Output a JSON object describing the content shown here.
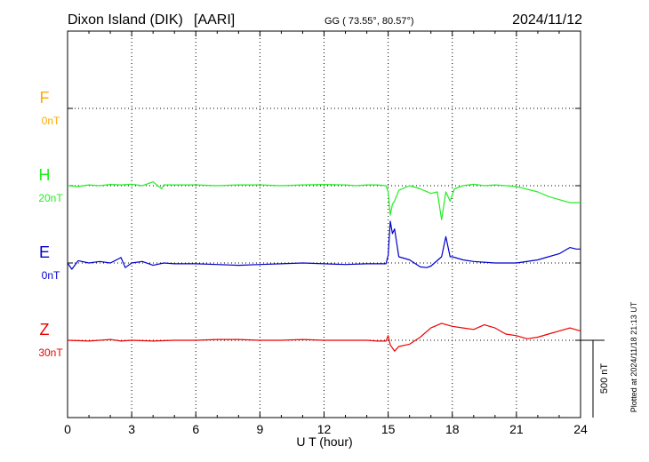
{
  "header": {
    "station": "Dixon Island (DIK)",
    "institute": "[AARI]",
    "coords": "GG ( 73.55°,  80.57°)",
    "date": "2024/11/12"
  },
  "plotted_note": "Plotted at 2024/11/18 21:13 UT",
  "scale_label": "500 nT",
  "chart_data": {
    "type": "line",
    "title": "Dixon Island (DIK)  [AARI]",
    "xlabel": "U T (hour)",
    "ylabel": "",
    "xlim": [
      0,
      24
    ],
    "xticks": [
      "0",
      "3",
      "6",
      "9",
      "12",
      "15",
      "18",
      "21",
      "24"
    ],
    "units_per_scale_bar": 500,
    "grid": true,
    "series": [
      {
        "name": "F",
        "baseline_label": "0nT",
        "color": "#ffaa00",
        "points": []
      },
      {
        "name": "H",
        "baseline_label": "20nT",
        "color": "#22ee22",
        "points": [
          [
            0,
            0
          ],
          [
            0.5,
            -5
          ],
          [
            1,
            5
          ],
          [
            1.5,
            0
          ],
          [
            2,
            8
          ],
          [
            2.5,
            5
          ],
          [
            3,
            10
          ],
          [
            3.5,
            0
          ],
          [
            4,
            25
          ],
          [
            4.4,
            -20
          ],
          [
            4.5,
            5
          ],
          [
            6,
            5
          ],
          [
            7,
            0
          ],
          [
            8,
            5
          ],
          [
            9,
            5
          ],
          [
            10,
            0
          ],
          [
            11,
            5
          ],
          [
            12,
            8
          ],
          [
            13,
            5
          ],
          [
            13.5,
            0
          ],
          [
            14,
            5
          ],
          [
            14.5,
            5
          ],
          [
            14.9,
            0
          ],
          [
            15,
            -40
          ],
          [
            15.1,
            -190
          ],
          [
            15.2,
            -120
          ],
          [
            15.3,
            -100
          ],
          [
            15.5,
            -30
          ],
          [
            16,
            0
          ],
          [
            16.5,
            -20
          ],
          [
            17,
            -50
          ],
          [
            17.3,
            -40
          ],
          [
            17.5,
            -220
          ],
          [
            17.7,
            -40
          ],
          [
            17.9,
            -100
          ],
          [
            18.1,
            -20
          ],
          [
            18.5,
            0
          ],
          [
            19,
            10
          ],
          [
            19.5,
            0
          ],
          [
            20,
            5
          ],
          [
            20.5,
            0
          ],
          [
            21,
            -5
          ],
          [
            22,
            -40
          ],
          [
            22.5,
            -70
          ],
          [
            23,
            -90
          ],
          [
            23.5,
            -110
          ],
          [
            24,
            -110
          ]
        ]
      },
      {
        "name": "E",
        "baseline_label": "0nT",
        "color": "#0000cc",
        "points": [
          [
            0,
            0
          ],
          [
            0.2,
            -40
          ],
          [
            0.5,
            15
          ],
          [
            1,
            0
          ],
          [
            1.5,
            10
          ],
          [
            2,
            0
          ],
          [
            2.5,
            35
          ],
          [
            2.7,
            -30
          ],
          [
            3,
            0
          ],
          [
            3.5,
            10
          ],
          [
            4,
            -15
          ],
          [
            4.5,
            0
          ],
          [
            5,
            -5
          ],
          [
            6,
            -5
          ],
          [
            7,
            -10
          ],
          [
            8,
            -15
          ],
          [
            9,
            -10
          ],
          [
            10,
            -5
          ],
          [
            11,
            0
          ],
          [
            12,
            -5
          ],
          [
            13,
            -10
          ],
          [
            14,
            -5
          ],
          [
            14.9,
            -5
          ],
          [
            15,
            50
          ],
          [
            15.1,
            270
          ],
          [
            15.2,
            190
          ],
          [
            15.3,
            220
          ],
          [
            15.5,
            40
          ],
          [
            16,
            20
          ],
          [
            16.5,
            -25
          ],
          [
            16.8,
            -30
          ],
          [
            17,
            -20
          ],
          [
            17.5,
            40
          ],
          [
            17.7,
            170
          ],
          [
            17.9,
            40
          ],
          [
            18,
            40
          ],
          [
            18.5,
            20
          ],
          [
            19,
            10
          ],
          [
            20,
            0
          ],
          [
            21,
            0
          ],
          [
            22,
            20
          ],
          [
            22.5,
            40
          ],
          [
            23,
            60
          ],
          [
            23.5,
            100
          ],
          [
            23.8,
            90
          ],
          [
            24,
            90
          ]
        ]
      },
      {
        "name": "Z",
        "baseline_label": "30nT",
        "color": "#ee0000",
        "points": [
          [
            0,
            0
          ],
          [
            1,
            -5
          ],
          [
            2,
            5
          ],
          [
            2.5,
            -5
          ],
          [
            3,
            0
          ],
          [
            4,
            -5
          ],
          [
            5,
            0
          ],
          [
            6,
            0
          ],
          [
            7,
            5
          ],
          [
            8,
            5
          ],
          [
            9,
            0
          ],
          [
            10,
            0
          ],
          [
            11,
            5
          ],
          [
            12,
            0
          ],
          [
            13,
            0
          ],
          [
            14,
            0
          ],
          [
            14.5,
            -5
          ],
          [
            14.9,
            -5
          ],
          [
            15,
            30
          ],
          [
            15.1,
            -30
          ],
          [
            15.3,
            -70
          ],
          [
            15.5,
            -40
          ],
          [
            16,
            -25
          ],
          [
            16.5,
            20
          ],
          [
            17,
            80
          ],
          [
            17.5,
            110
          ],
          [
            18,
            90
          ],
          [
            18.5,
            80
          ],
          [
            19,
            70
          ],
          [
            19.5,
            100
          ],
          [
            20,
            80
          ],
          [
            20.5,
            40
          ],
          [
            21,
            30
          ],
          [
            21.5,
            10
          ],
          [
            22,
            20
          ],
          [
            22.5,
            40
          ],
          [
            23,
            60
          ],
          [
            23.5,
            80
          ],
          [
            24,
            60
          ]
        ]
      }
    ]
  }
}
